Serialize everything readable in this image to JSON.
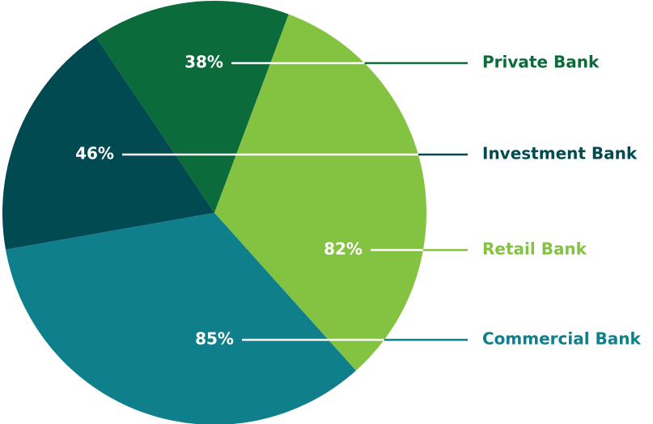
{
  "chart_data": {
    "type": "pie",
    "categories": [
      "Private Bank",
      "Retail Bank",
      "Commercial Bank",
      "Investment Bank"
    ],
    "values": [
      38,
      82,
      85,
      46
    ],
    "value_labels": [
      "38%",
      "82%",
      "85%",
      "46%"
    ],
    "colors": [
      "#0b6b3a",
      "#84c341",
      "#0f7f8c",
      "#024a52"
    ]
  }
}
